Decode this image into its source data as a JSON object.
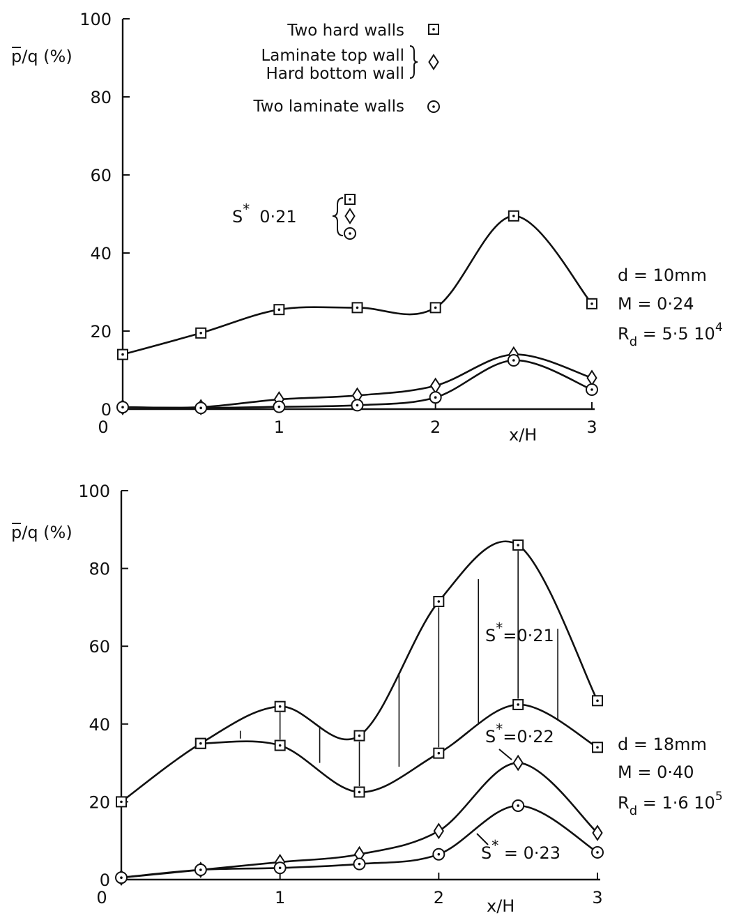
{
  "chart_data": [
    {
      "type": "line",
      "title": "",
      "xlabel": "x/H",
      "ylabel": "p/q (%)",
      "xlim": [
        0,
        3
      ],
      "ylim": [
        0,
        100
      ],
      "x_ticks": [
        "0",
        "1",
        "2",
        "3"
      ],
      "y_ticks": [
        "0",
        "20",
        "40",
        "60",
        "80",
        "100"
      ],
      "legend": [
        {
          "label_lines": [
            "Two hard walls"
          ],
          "marker": "square-dot"
        },
        {
          "label_lines": [
            "Laminate top wall",
            "Hard bottom wall"
          ],
          "marker": "diamond"
        },
        {
          "label_lines": [
            "Two laminate walls"
          ],
          "marker": "circle-dot"
        }
      ],
      "annotations": {
        "s_note": {
          "symbol": "S",
          "star": "*",
          "value": "0·21"
        },
        "conditions": [
          {
            "base": "d = 10mm"
          },
          {
            "base": "M = 0·24"
          },
          {
            "base": "R",
            "sub": "d",
            "mid": " = 5·5  10",
            "sup": "4"
          }
        ]
      },
      "series": [
        {
          "marker": "square-dot",
          "x": [
            0,
            0.5,
            1,
            1.5,
            2,
            2.5,
            3
          ],
          "y": [
            14,
            19.5,
            25.5,
            26,
            26,
            49.5,
            27
          ]
        },
        {
          "marker": "diamond",
          "x": [
            0,
            0.5,
            1,
            1.5,
            2,
            2.5,
            3
          ],
          "y": [
            0.5,
            0.5,
            2.5,
            3.5,
            6,
            14,
            8
          ]
        },
        {
          "marker": "circle-dot",
          "x": [
            0,
            0.5,
            1,
            1.5,
            2,
            2.5,
            3
          ],
          "y": [
            0.5,
            0.3,
            0.6,
            1,
            3,
            12.5,
            5
          ]
        }
      ]
    },
    {
      "type": "line",
      "title": "",
      "xlabel": "x/H",
      "ylabel": "p/q (%)",
      "xlim": [
        0,
        3
      ],
      "ylim": [
        0,
        100
      ],
      "x_ticks": [
        "0",
        "1",
        "2",
        "3"
      ],
      "y_ticks": [
        "0",
        "20",
        "40",
        "60",
        "80",
        "100"
      ],
      "annotations": {
        "labels": [
          {
            "symbol": "S",
            "star": "*",
            "text": "=0·21"
          },
          {
            "symbol": "S",
            "star": "*",
            "text": "=0·22"
          },
          {
            "symbol": "S",
            "star": "*",
            "text": " = 0·23"
          }
        ],
        "conditions": [
          {
            "base": "d = 18mm"
          },
          {
            "base": "M = 0·40"
          },
          {
            "base": "R",
            "sub": "d",
            "mid": " = 1·6  10",
            "sup": "5"
          }
        ]
      },
      "series": [
        {
          "marker": "square-dot",
          "x": [
            0,
            0.5,
            1,
            1.5,
            2,
            2.5,
            3
          ],
          "y": [
            20,
            35,
            44.5,
            37,
            71.5,
            86,
            46
          ]
        },
        {
          "marker": "square-dot",
          "x": [
            0.5,
            1,
            1.5,
            2,
            2.5,
            3
          ],
          "y": [
            35,
            34.5,
            22.5,
            32.5,
            45,
            34
          ]
        },
        {
          "marker": "diamond",
          "x": [
            0,
            0.5,
            1,
            1.5,
            2,
            2.5,
            3
          ],
          "y": [
            0.5,
            2.5,
            4.5,
            6.5,
            12.5,
            30,
            12
          ]
        },
        {
          "marker": "circle-dot",
          "x": [
            0,
            0.5,
            1,
            1.5,
            2,
            2.5,
            3
          ],
          "y": [
            0.5,
            2.5,
            3,
            4,
            6.5,
            19,
            7
          ]
        }
      ]
    }
  ]
}
